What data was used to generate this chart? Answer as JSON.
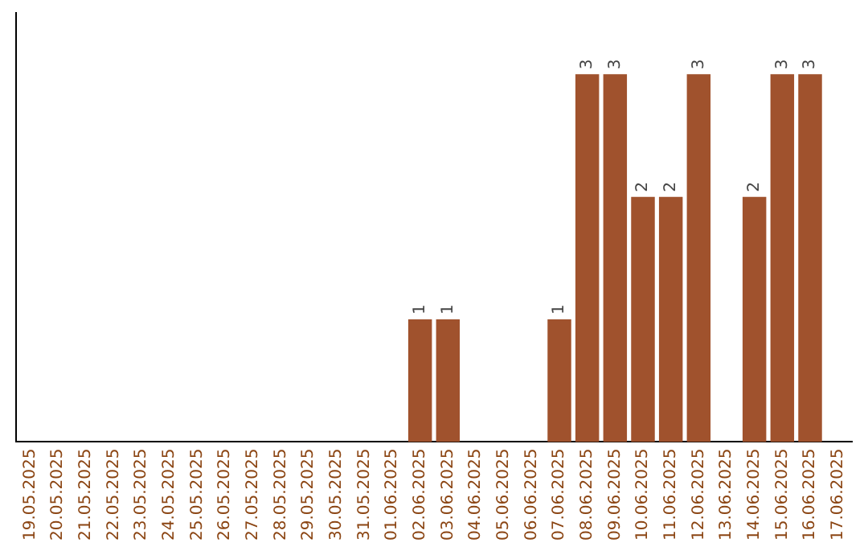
{
  "chart_data": {
    "type": "bar",
    "categories": [
      "19.05.2025",
      "20.05.2025",
      "21.05.2025",
      "22.05.2025",
      "23.05.2025",
      "24.05.2025",
      "25.05.2025",
      "26.05.2025",
      "27.05.2025",
      "28.05.2025",
      "29.05.2025",
      "30.05.2025",
      "31.05.2025",
      "01.06.2025",
      "02.06.2025",
      "03.06.2025",
      "04.06.2025",
      "05.06.2025",
      "06.06.2025",
      "07.06.2025",
      "08.06.2025",
      "09.06.2025",
      "10.06.2025",
      "11.06.2025",
      "12.06.2025",
      "13.06.2025",
      "14.06.2025",
      "15.06.2025",
      "16.06.2025",
      "17.06.2025"
    ],
    "values": [
      null,
      null,
      null,
      null,
      null,
      null,
      null,
      null,
      null,
      null,
      null,
      null,
      null,
      null,
      1,
      1,
      null,
      null,
      null,
      1,
      3,
      3,
      2,
      2,
      3,
      null,
      2,
      3,
      3,
      null
    ],
    "data_labels": true,
    "color": "#a0522d",
    "grid": false,
    "legend": false
  }
}
